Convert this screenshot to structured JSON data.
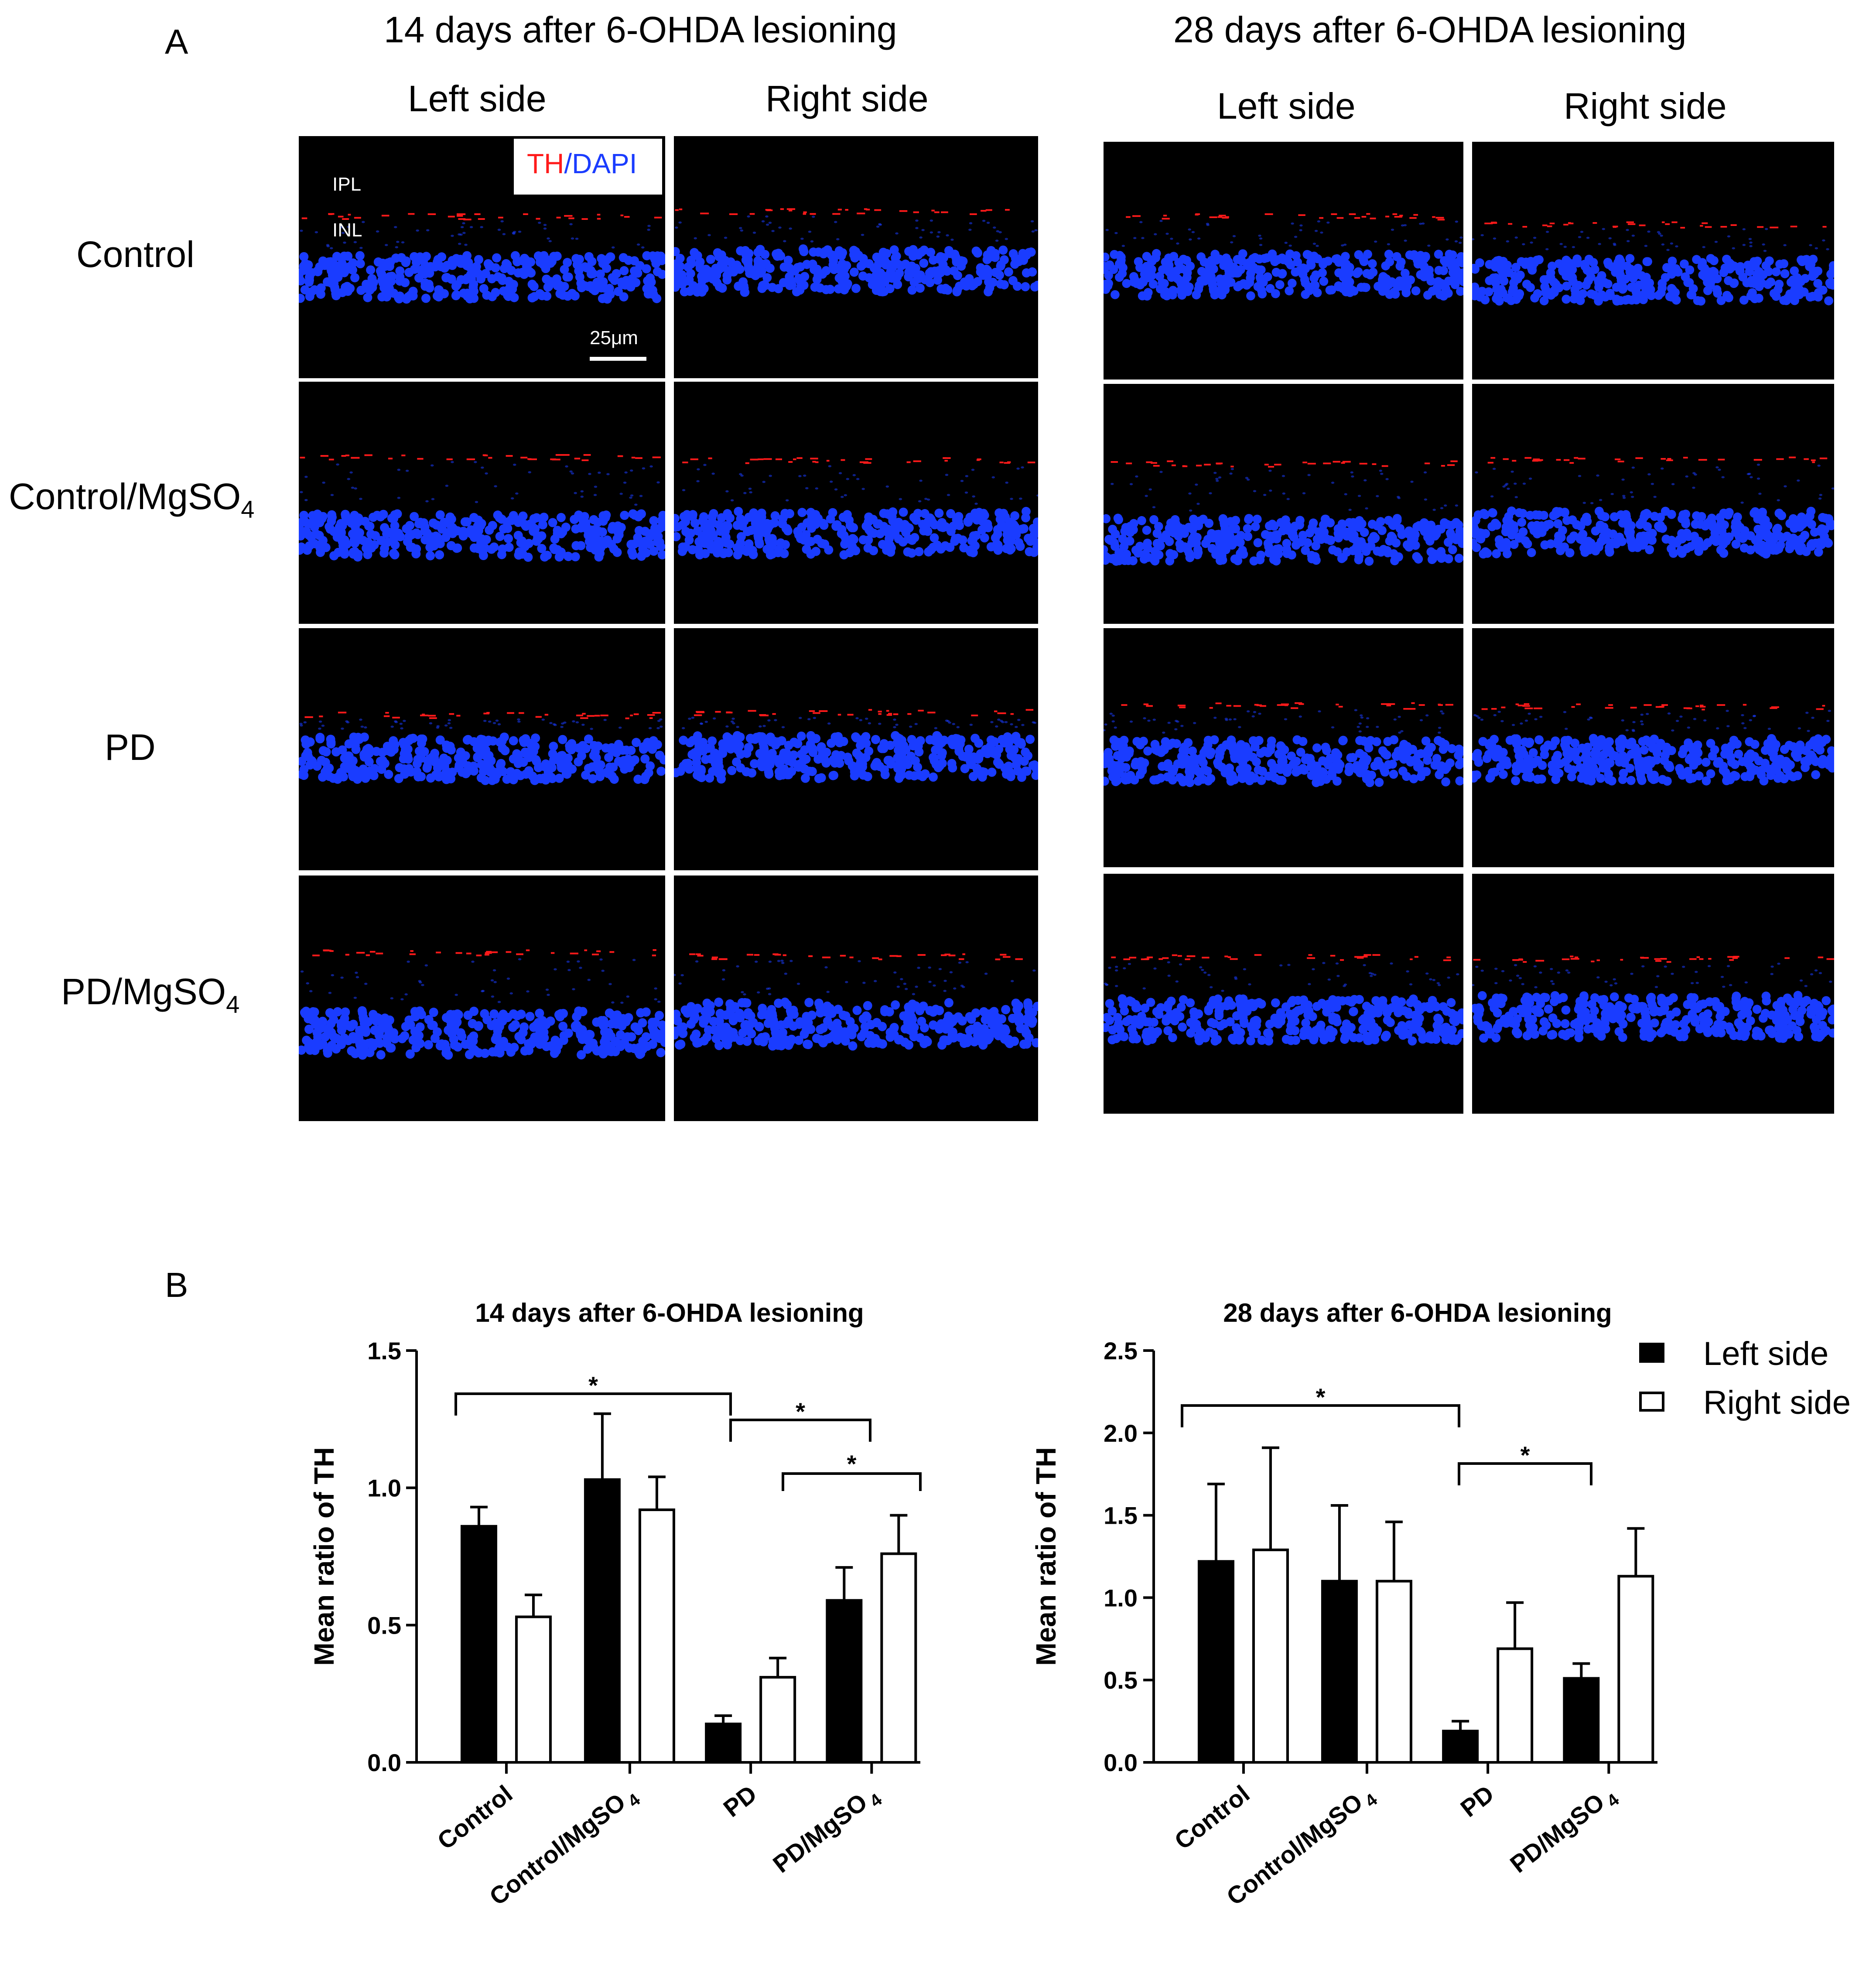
{
  "panel_a": {
    "letter": "A",
    "time_titles": [
      "14 days after 6-OHDA lesioning",
      "28 days after 6-OHDA lesioning"
    ],
    "side_titles": [
      "Left side",
      "Right side"
    ],
    "row_labels": [
      {
        "main": "Control",
        "sub": ""
      },
      {
        "main": "Control/MgSO",
        "sub": "4"
      },
      {
        "main": "PD",
        "sub": ""
      },
      {
        "main": "PD/MgSO",
        "sub": "4"
      }
    ],
    "stain_label": {
      "th": "TH",
      "slash": "/",
      "dapi": "DAPI"
    },
    "layer_labels": {
      "ipl": "IPL",
      "inl": "INL"
    },
    "scale_bar": "25μm",
    "colors": {
      "th": "#ff1a1a",
      "dapi": "#1a3cff",
      "background": "#000000"
    }
  },
  "panel_b": {
    "letter": "B",
    "legend": [
      "Left side",
      "Right side"
    ]
  },
  "chart_data": [
    {
      "type": "bar",
      "title": "14 days after 6-OHDA lesioning",
      "xlabel": "",
      "ylabel": "Mean ratio of TH",
      "categories": [
        "Control",
        "Control/MgSO4",
        "PD",
        "PD/MgSO4"
      ],
      "category_labels": [
        {
          "main": "Control",
          "sub": ""
        },
        {
          "main": "Control/MgSO",
          "sub": "4"
        },
        {
          "main": "PD",
          "sub": ""
        },
        {
          "main": "PD/MgSO",
          "sub": "4"
        }
      ],
      "ylim": [
        0,
        1.5
      ],
      "yticks": [
        "0.0",
        "0.5",
        "1.0",
        "1.5"
      ],
      "ytick_values": [
        0,
        0.5,
        1.0,
        1.5
      ],
      "series": [
        {
          "name": "Left side",
          "fill": "#000000",
          "values": [
            0.86,
            1.03,
            0.14,
            0.59
          ],
          "errors": [
            0.07,
            0.24,
            0.03,
            0.12
          ]
        },
        {
          "name": "Right side",
          "fill": "#ffffff",
          "values": [
            0.53,
            0.92,
            0.31,
            0.76
          ],
          "errors": [
            0.08,
            0.12,
            0.07,
            0.14
          ]
        }
      ],
      "significance": [
        {
          "from": "Control",
          "to": "PD",
          "label": "*"
        },
        {
          "from": "PD",
          "to": "Control/MgSO4 right",
          "label": "*"
        },
        {
          "from": "PD right",
          "to": "PD/MgSO4 right",
          "label": "*"
        }
      ]
    },
    {
      "type": "bar",
      "title": "28 days after 6-OHDA lesioning",
      "xlabel": "",
      "ylabel": "Mean ratio of TH",
      "categories": [
        "Control",
        "Control/MgSO4",
        "PD",
        "PD/MgSO4"
      ],
      "category_labels": [
        {
          "main": "Control",
          "sub": ""
        },
        {
          "main": "Control/MgSO",
          "sub": "4"
        },
        {
          "main": "PD",
          "sub": ""
        },
        {
          "main": "PD/MgSO",
          "sub": "4"
        }
      ],
      "ylim": [
        0,
        2.5
      ],
      "yticks": [
        "0.0",
        "0.5",
        "1.0",
        "1.5",
        "2.0",
        "2.5"
      ],
      "ytick_values": [
        0,
        0.5,
        1.0,
        1.5,
        2.0,
        2.5
      ],
      "legend_position": "top-right",
      "series": [
        {
          "name": "Left side",
          "fill": "#000000",
          "values": [
            1.22,
            1.1,
            0.19,
            0.51
          ],
          "errors": [
            0.47,
            0.46,
            0.06,
            0.09
          ]
        },
        {
          "name": "Right side",
          "fill": "#ffffff",
          "values": [
            1.29,
            1.1,
            0.69,
            1.13
          ],
          "errors": [
            0.62,
            0.36,
            0.28,
            0.29
          ]
        }
      ],
      "significance": [
        {
          "from": "Control",
          "to": "PD",
          "label": "*"
        },
        {
          "from": "PD",
          "to": "PD/MgSO4",
          "label": "*"
        }
      ]
    }
  ]
}
